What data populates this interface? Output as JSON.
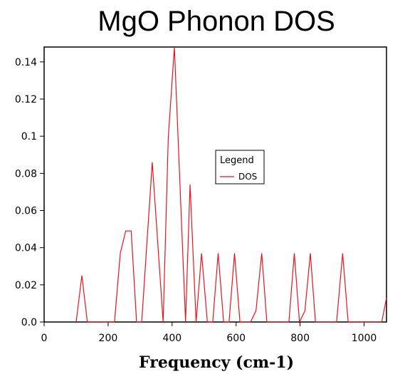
{
  "chart_data": {
    "type": "line",
    "title": "MgO Phonon DOS",
    "xlabel": "Frequency (cm-1)",
    "ylabel": "",
    "xlim": [
      0,
      1070
    ],
    "ylim": [
      0,
      0.148
    ],
    "xticks": [
      0,
      200,
      400,
      600,
      800,
      1000
    ],
    "xtick_labels": [
      "0",
      "200",
      "400",
      "600",
      "800",
      "1000"
    ],
    "yticks": [
      0,
      0.02,
      0.04,
      0.06,
      0.08,
      0.1,
      0.12,
      0.14
    ],
    "ytick_labels": [
      "0.0",
      "0.02",
      "0.04",
      "0.06",
      "0.08",
      "0.1",
      "0.12",
      "0.14"
    ],
    "grid": false,
    "legend": {
      "title": "Legend",
      "position": "center-right"
    },
    "series": [
      {
        "name": "DOS",
        "color": "#e8131c",
        "x": [
          100,
          118,
          135,
          220,
          238,
          255,
          272,
          289,
          305,
          338,
          372,
          388,
          407,
          442,
          456,
          475,
          492,
          510,
          527,
          544,
          561,
          578,
          595,
          612,
          645,
          662,
          680,
          696,
          765,
          782,
          798,
          815,
          832,
          848,
          914,
          933,
          950,
          1055,
          1070
        ],
        "y": [
          0,
          0.025,
          0,
          0,
          0.037,
          0.049,
          0.049,
          0,
          0,
          0.086,
          0,
          0.099,
          0.148,
          0,
          0.074,
          0,
          0.037,
          0,
          0,
          0.037,
          0,
          0,
          0.037,
          0,
          0,
          0.006,
          0.037,
          0,
          0,
          0.037,
          0,
          0.006,
          0.037,
          0,
          0,
          0.037,
          0,
          0,
          0.013
        ]
      }
    ]
  }
}
